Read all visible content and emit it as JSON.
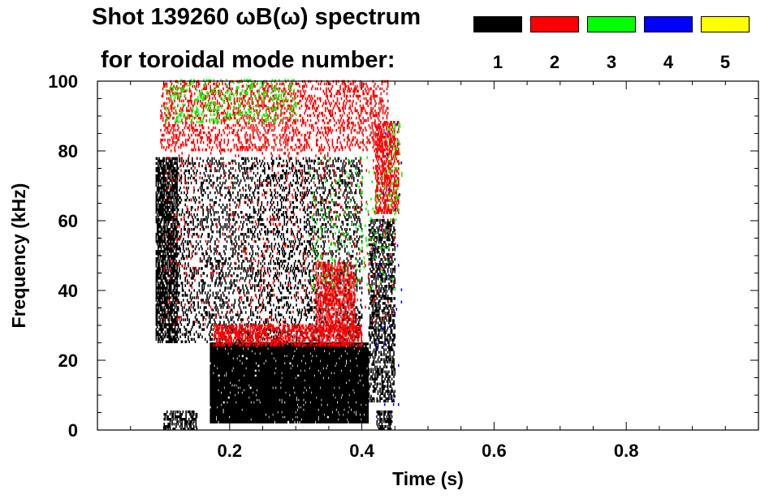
{
  "title_line1": "Shot 139260 ωB(ω) spectrum",
  "title_line2": "for toroidal mode number:",
  "chart_data": {
    "type": "heatmap",
    "title": "Shot 139260 ωB(ω) spectrum",
    "xlabel": "Time (s)",
    "ylabel": "Frequency (kHz)",
    "xlim": [
      0.0,
      1.0
    ],
    "ylim": [
      0,
      100
    ],
    "x_ticks": [
      "0.2",
      "0.4",
      "0.6",
      "0.8"
    ],
    "y_ticks": [
      "0",
      "20",
      "40",
      "60",
      "80",
      "100"
    ],
    "legend_title": "for toroidal mode number:",
    "legend_position": "top-right",
    "series": [
      {
        "name": "1",
        "color": "#000000"
      },
      {
        "name": "2",
        "color": "#ff0000"
      },
      {
        "name": "3",
        "color": "#00ff00"
      },
      {
        "name": "4",
        "color": "#0000ff"
      },
      {
        "name": "5",
        "color": "#ffff00"
      }
    ],
    "regions": [
      {
        "mode": "1",
        "t": [
          0.17,
          0.41
        ],
        "f": [
          2,
          25
        ],
        "density": 0.95
      },
      {
        "mode": "1",
        "t": [
          0.088,
          0.12
        ],
        "f": [
          25,
          78
        ],
        "density": 0.7
      },
      {
        "mode": "1",
        "t": [
          0.12,
          0.4
        ],
        "f": [
          25,
          78
        ],
        "density": 0.22
      },
      {
        "mode": "1",
        "t": [
          0.41,
          0.45
        ],
        "f": [
          8,
          60
        ],
        "density": 0.45
      },
      {
        "mode": "1",
        "t": [
          0.1,
          0.15
        ],
        "f": [
          0,
          5
        ],
        "density": 0.5
      },
      {
        "mode": "1",
        "t": [
          0.422,
          0.445
        ],
        "f": [
          0,
          5
        ],
        "density": 0.6
      },
      {
        "mode": "2",
        "t": [
          0.175,
          0.4
        ],
        "f": [
          24,
          30
        ],
        "density": 0.55
      },
      {
        "mode": "2",
        "t": [
          0.095,
          0.44
        ],
        "f": [
          80,
          100
        ],
        "density": 0.25
      },
      {
        "mode": "2",
        "t": [
          0.33,
          0.39
        ],
        "f": [
          28,
          48
        ],
        "density": 0.45
      },
      {
        "mode": "2",
        "t": [
          0.42,
          0.455
        ],
        "f": [
          62,
          88
        ],
        "density": 0.5
      },
      {
        "mode": "2",
        "t": [
          0.1,
          0.45
        ],
        "f": [
          30,
          80
        ],
        "density": 0.03
      },
      {
        "mode": "3",
        "t": [
          0.1,
          0.3
        ],
        "f": [
          88,
          100
        ],
        "density": 0.15
      },
      {
        "mode": "3",
        "t": [
          0.32,
          0.45
        ],
        "f": [
          40,
          78
        ],
        "density": 0.03
      },
      {
        "mode": "3",
        "t": [
          0.44,
          0.46
        ],
        "f": [
          60,
          88
        ],
        "density": 0.12
      },
      {
        "mode": "4",
        "t": [
          0.42,
          0.46
        ],
        "f": [
          0,
          90
        ],
        "density": 0.01
      }
    ]
  }
}
